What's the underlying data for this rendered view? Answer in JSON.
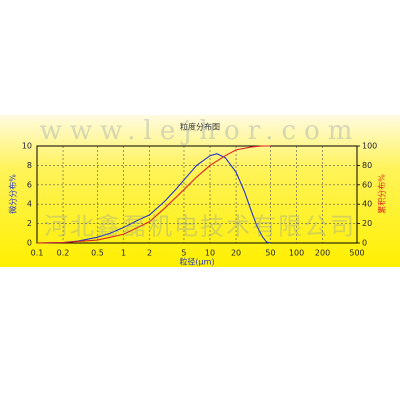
{
  "chart_data": {
    "type": "line",
    "title": "粒度分布图",
    "xlabel": "粒径(μm)",
    "ylabel": "微分分布%",
    "y2label": "累积分布%",
    "xscale": "log",
    "xlim": [
      0.1,
      500
    ],
    "xticks": [
      0.1,
      0.2,
      0.5,
      1,
      2,
      5,
      10,
      20,
      50,
      100,
      200,
      500
    ],
    "ylim": [
      0,
      10
    ],
    "yticks": [
      0,
      2,
      4,
      6,
      8,
      10
    ],
    "y2lim": [
      0,
      100
    ],
    "y2ticks": [
      0,
      20,
      40,
      60,
      80,
      100
    ],
    "grid": true,
    "series": [
      {
        "name": "微分分布%",
        "color": "#2233cc",
        "x": [
          0.1,
          0.2,
          0.3,
          0.5,
          0.7,
          1,
          1.5,
          2,
          3,
          4,
          5,
          7,
          10,
          12,
          15,
          20,
          25,
          30,
          35,
          40,
          45,
          50
        ],
        "values": [
          0,
          0.05,
          0.2,
          0.6,
          1.0,
          1.6,
          2.4,
          2.9,
          4.3,
          5.5,
          6.5,
          8.0,
          9.0,
          9.2,
          8.8,
          7.3,
          5.3,
          3.3,
          1.7,
          0.7,
          0.1,
          0
        ]
      },
      {
        "name": "累积分布%",
        "color": "#dd2222",
        "axis": "y2",
        "x": [
          0.1,
          0.2,
          0.5,
          1,
          2,
          3,
          5,
          7,
          10,
          15,
          20,
          30,
          40,
          50
        ],
        "values": [
          0,
          0.5,
          3,
          9,
          22,
          36,
          55,
          68,
          80,
          90,
          96,
          99,
          100,
          100
        ]
      }
    ],
    "watermarks": [
      "www.lejhor.com",
      "河北鑫磊机电技术有限公司"
    ]
  }
}
